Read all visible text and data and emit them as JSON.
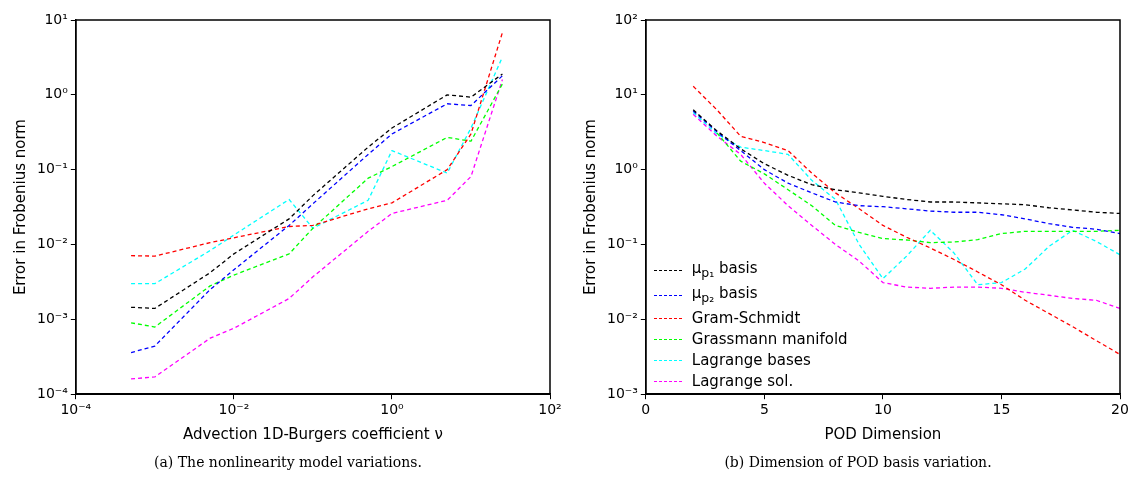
{
  "chart_data": [
    {
      "type": "line",
      "xlabel": "Advection 1D-Burgers coefficient ν",
      "ylabel": "Error in Frobenius norm",
      "log": "xy",
      "grid": false,
      "legend": false,
      "marker": "none",
      "line_style": "dashed",
      "annotations": [
        "(a) The nonlinearity model variations."
      ],
      "x": [
        0.0005,
        0.001,
        0.005,
        0.01,
        0.05,
        0.1,
        0.5,
        1,
        5,
        10,
        25
      ],
      "xlim": [
        0.0001,
        100
      ],
      "xticks": [
        {
          "value": 0.0001,
          "label": "10⁻⁴"
        },
        {
          "value": 0.01,
          "label": "10⁻²"
        },
        {
          "value": 1,
          "label": "10⁰"
        },
        {
          "value": 100,
          "label": "10²"
        }
      ],
      "ylim": [
        0.0001,
        10
      ],
      "yticks": [
        {
          "value": 0.0001,
          "label": "10⁻⁴"
        },
        {
          "value": 0.001,
          "label": "10⁻³"
        },
        {
          "value": 0.01,
          "label": "10⁻²"
        },
        {
          "value": 0.1,
          "label": "10⁻¹"
        },
        {
          "value": 1,
          "label": "10⁰"
        },
        {
          "value": 10,
          "label": "10¹"
        }
      ],
      "series": [
        {
          "color": "#000000",
          "values": [
            0.00145,
            0.0014,
            0.0042,
            0.0075,
            0.022,
            0.045,
            0.2,
            0.36,
            1.0,
            0.93,
            1.9
          ]
        },
        {
          "color": "#0000ff",
          "values": [
            0.00036,
            0.00044,
            0.0025,
            0.0046,
            0.018,
            0.035,
            0.16,
            0.3,
            0.76,
            0.72,
            1.8
          ]
        },
        {
          "color": "#ff0000",
          "values": [
            0.0071,
            0.007,
            0.0106,
            0.0123,
            0.0174,
            0.018,
            0.03,
            0.036,
            0.1,
            0.3,
            6.8
          ]
        },
        {
          "color": "#00ff00",
          "values": [
            0.0009,
            0.00079,
            0.0028,
            0.0039,
            0.0075,
            0.0165,
            0.077,
            0.11,
            0.27,
            0.24,
            1.4
          ]
        },
        {
          "color": "#00ffff",
          "values": [
            0.003,
            0.003,
            0.0083,
            0.0134,
            0.04,
            0.0165,
            0.039,
            0.18,
            0.09,
            0.36,
            3.2
          ]
        },
        {
          "color": "#ff00ff",
          "values": [
            0.00016,
            0.00017,
            0.00056,
            0.00076,
            0.0019,
            0.0037,
            0.015,
            0.026,
            0.039,
            0.081,
            1.6
          ]
        }
      ]
    },
    {
      "type": "line",
      "xlabel": "POD Dimension",
      "ylabel": "Error in Frobenius norm",
      "log": "y",
      "grid": false,
      "legend": "bottom left",
      "marker": "none",
      "line_style": "dashed",
      "annotations": [
        "(b) Dimension of POD basis variation."
      ],
      "x": [
        2,
        3,
        4,
        5,
        6,
        7,
        8,
        9,
        10,
        11,
        12,
        13,
        14,
        15,
        16,
        17,
        18,
        19,
        20
      ],
      "xlim": [
        0,
        20
      ],
      "xticks": [
        0,
        5,
        10,
        15,
        20
      ],
      "ylim": [
        0.001,
        100
      ],
      "yticks": [
        {
          "value": 0.001,
          "label": "10⁻³"
        },
        {
          "value": 0.01,
          "label": "10⁻²"
        },
        {
          "value": 0.1,
          "label": "10⁻¹"
        },
        {
          "value": 1,
          "label": "10⁰"
        },
        {
          "value": 10,
          "label": "10¹"
        },
        {
          "value": 100,
          "label": "10²"
        }
      ],
      "series": [
        {
          "name": "μ$_{p₁}$ basis",
          "color": "#000000",
          "values": [
            6.3,
            3.3,
            1.9,
            1.2,
            0.84,
            0.63,
            0.54,
            0.49,
            0.44,
            0.4,
            0.37,
            0.37,
            0.36,
            0.35,
            0.34,
            0.31,
            0.29,
            0.27,
            0.26
          ]
        },
        {
          "name": "μ$_{p₂}$ basis",
          "color": "#0000ff",
          "values": [
            6.1,
            3.2,
            1.8,
            1.0,
            0.66,
            0.49,
            0.37,
            0.33,
            0.32,
            0.3,
            0.28,
            0.27,
            0.27,
            0.25,
            0.22,
            0.19,
            0.17,
            0.16,
            0.14
          ]
        },
        {
          "name": "Gram-Schmidt",
          "color": "#ff0000",
          "values": [
            13,
            6.3,
            2.8,
            2.3,
            1.8,
            0.9,
            0.49,
            0.3,
            0.18,
            0.125,
            0.09,
            0.063,
            0.043,
            0.029,
            0.018,
            0.012,
            0.008,
            0.0052,
            0.0034
          ]
        },
        {
          "name": "Grassmann manifold",
          "color": "#00ff00",
          "values": [
            null,
            3.1,
            1.3,
            0.88,
            0.54,
            0.33,
            0.18,
            0.145,
            0.12,
            0.115,
            0.106,
            0.108,
            0.116,
            0.14,
            0.15,
            0.15,
            0.15,
            0.15,
            0.155
          ]
        },
        {
          "name": "Lagrange bases",
          "color": "#00ffff",
          "values": [
            5.8,
            3.0,
            2.0,
            1.8,
            1.6,
            0.72,
            0.4,
            0.1,
            0.035,
            0.07,
            0.155,
            0.077,
            0.029,
            0.031,
            0.047,
            0.094,
            0.155,
            0.11,
            0.073
          ]
        },
        {
          "name": "Lagrange sol.",
          "color": "#ff00ff",
          "values": [
            5.5,
            2.8,
            1.6,
            0.66,
            0.33,
            0.18,
            0.1,
            0.06,
            0.031,
            0.027,
            0.026,
            0.027,
            0.027,
            0.026,
            0.023,
            0.021,
            0.019,
            0.018,
            0.014
          ]
        }
      ]
    }
  ]
}
